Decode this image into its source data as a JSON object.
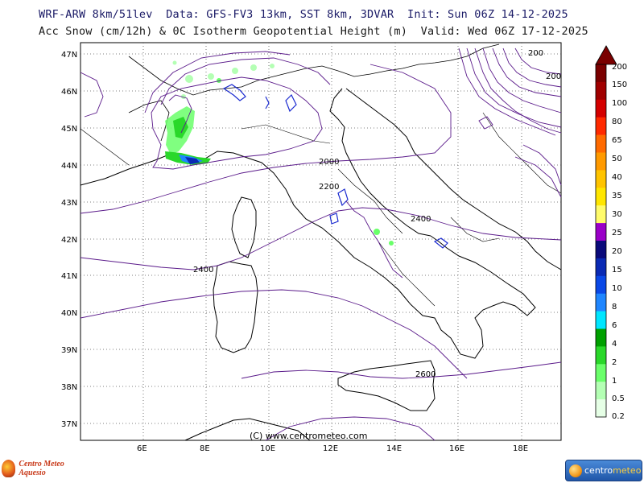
{
  "header": {
    "line1": "WRF-ARW 8km/51lev  Data: GFS-FV3 13km, SST 8km, 3DVAR  Init: Sun 06Z 14-12-2025",
    "line2": "Acc Snow (cm/12h) & 0C Isotherm Geopotential Height (m)  Valid: Wed 06Z 17-12-2025"
  },
  "map": {
    "lat_labels": [
      "47N",
      "46N",
      "45N",
      "44N",
      "43N",
      "42N",
      "41N",
      "40N",
      "39N",
      "38N",
      "37N"
    ],
    "lon_labels": [
      "6E",
      "8E",
      "10E",
      "12E",
      "14E",
      "16E",
      "18E"
    ],
    "contour_labels": [
      "200",
      "200",
      "2000",
      "2200",
      "2400",
      "2400",
      "2600"
    ],
    "credit": "(C) www.centrometeo.com"
  },
  "legend": {
    "labels": [
      "200",
      "150",
      "100",
      "80",
      "65",
      "50",
      "40",
      "35",
      "30",
      "25",
      "20",
      "15",
      "10",
      "8",
      "6",
      "4",
      "2",
      "1",
      "0.5",
      "0.2"
    ],
    "colors": [
      "#7a0000",
      "#a00000",
      "#d40000",
      "#ff2a00",
      "#ff6a00",
      "#ff9a00",
      "#ffc400",
      "#ffe600",
      "#fffb6a",
      "#9a00c8",
      "#0a0a7a",
      "#0a2ab4",
      "#0a48e6",
      "#1f86ff",
      "#00e6ff",
      "#00a000",
      "#2ad82a",
      "#6aff6a",
      "#b4ffb4",
      "#e6ffe6"
    ]
  },
  "logos": {
    "left": "Centro Meteo Aquesio",
    "right_a": "centro",
    "right_b": "meteo"
  }
}
